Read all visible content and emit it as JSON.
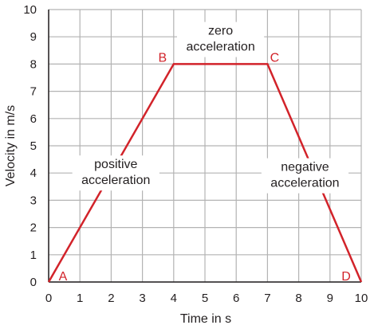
{
  "chart_data": {
    "type": "line",
    "xlabel": "Time in s",
    "ylabel": "Velocity in m/s",
    "xlim": [
      0,
      10
    ],
    "ylim": [
      0,
      10
    ],
    "xticks": [
      0,
      1,
      2,
      3,
      4,
      5,
      6,
      7,
      8,
      9,
      10
    ],
    "yticks": [
      0,
      1,
      2,
      3,
      4,
      5,
      6,
      7,
      8,
      9,
      10
    ],
    "grid": true,
    "series": [
      {
        "x": [
          0,
          4,
          7,
          10
        ],
        "y": [
          0,
          8,
          8,
          0
        ],
        "color": "#d2232a"
      }
    ],
    "point_labels": [
      {
        "text": "A",
        "x": 0,
        "y": 0
      },
      {
        "text": "B",
        "x": 4,
        "y": 8
      },
      {
        "text": "C",
        "x": 7,
        "y": 8
      },
      {
        "text": "D",
        "x": 10,
        "y": 0
      }
    ],
    "annotations": [
      {
        "lines": [
          "zero",
          "acceleration"
        ],
        "x": 5.5,
        "y": 8.9
      },
      {
        "lines": [
          "positive",
          "acceleration"
        ],
        "x": 2.15,
        "y": 4.0
      },
      {
        "lines": [
          "negative",
          "acceleration"
        ],
        "x": 8.2,
        "y": 3.9
      }
    ],
    "colors": {
      "line": "#d2232a",
      "grid": "#b3b3b3",
      "axis": "#231f20",
      "label": "#d2232a"
    }
  }
}
